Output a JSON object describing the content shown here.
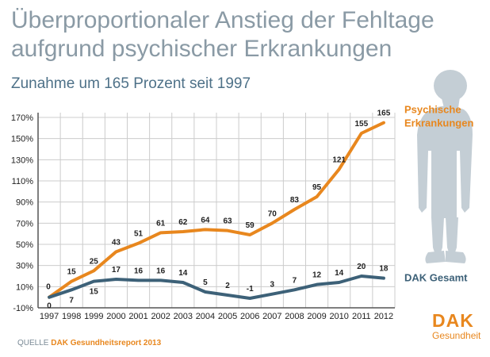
{
  "header": {
    "title_line1": "Überproportionaler Anstieg der Fehltage",
    "title_line2": "aufgrund psychischer Erkrankungen",
    "subtitle": "Zunahme um 165 Prozent seit 1997"
  },
  "footer": {
    "source_prefix": "QUELLE ",
    "source_brand": "DAK Gesundheitsreport 2013"
  },
  "logo": {
    "text": "DAK",
    "subtext": "Gesundheit"
  },
  "colors": {
    "psych": "#e8871e",
    "dak": "#3d6178",
    "axis_text": "#222222",
    "grid": "#cccccc",
    "silhouette": "#c4ced5"
  },
  "chart_data": {
    "type": "line",
    "x": [
      "1997",
      "1998",
      "1999",
      "2000",
      "2001",
      "2002",
      "2003",
      "2004",
      "2005",
      "2006",
      "2007",
      "2008",
      "2009",
      "2010",
      "2011",
      "2012"
    ],
    "ylim": [
      -10,
      170
    ],
    "yticks": [
      "-10%",
      "10%",
      "30%",
      "50%",
      "70%",
      "90%",
      "110%",
      "130%",
      "150%",
      "170%"
    ],
    "ytick_values": [
      -10,
      10,
      30,
      50,
      70,
      90,
      110,
      130,
      150,
      170
    ],
    "grid": true,
    "series": [
      {
        "name_line1": "Psychische",
        "name_line2": "Erkrankungen",
        "values": [
          0,
          15,
          25,
          43,
          51,
          61,
          62,
          64,
          63,
          59,
          70,
          83,
          95,
          121,
          155,
          165
        ]
      },
      {
        "name_line1": "DAK Gesamt",
        "values": [
          0,
          7,
          15,
          17,
          16,
          16,
          14,
          5,
          2,
          -1,
          3,
          7,
          12,
          14,
          20,
          18
        ]
      }
    ]
  }
}
